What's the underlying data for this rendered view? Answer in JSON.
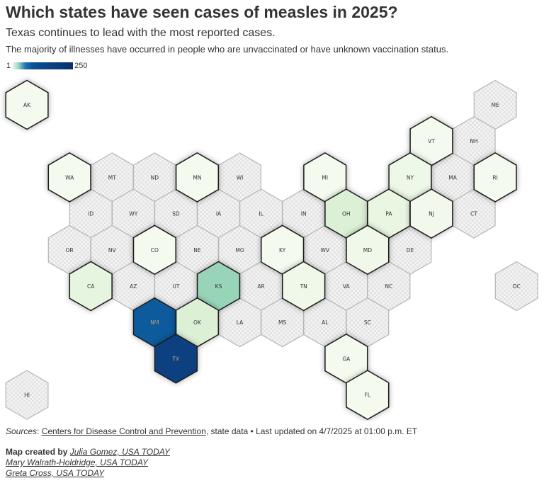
{
  "title": "Which states have seen cases of measles in 2025?",
  "subtitle": "Texas continues to lead with the most reported cases.",
  "description": "The majority of illnesses have occurred in people who are unvaccinated or have unknown vaccination status.",
  "legend": {
    "min": "1",
    "max": "250"
  },
  "colors": {
    "no_data": "#eeeeee",
    "lightest": "#f4faee",
    "light": "#dcf0d6",
    "mid": "#98d5b8",
    "dark": "#0a5a9c",
    "darkest": "#0a3f80"
  },
  "states": [
    {
      "abbr": "AK",
      "fill": "#f4faee"
    },
    {
      "abbr": "ME",
      "fill": null
    },
    {
      "abbr": "VT",
      "fill": "#f4faee"
    },
    {
      "abbr": "NH",
      "fill": null
    },
    {
      "abbr": "WA",
      "fill": "#f4faee"
    },
    {
      "abbr": "MT",
      "fill": null
    },
    {
      "abbr": "ND",
      "fill": null
    },
    {
      "abbr": "MN",
      "fill": "#f4faee"
    },
    {
      "abbr": "WI",
      "fill": null
    },
    {
      "abbr": "MI",
      "fill": "#f4faee"
    },
    {
      "abbr": "NY",
      "fill": "#eef8e8"
    },
    {
      "abbr": "MA",
      "fill": null
    },
    {
      "abbr": "RI",
      "fill": "#f4faee"
    },
    {
      "abbr": "ID",
      "fill": null
    },
    {
      "abbr": "WY",
      "fill": null
    },
    {
      "abbr": "SD",
      "fill": null
    },
    {
      "abbr": "IA",
      "fill": null
    },
    {
      "abbr": "IL",
      "fill": null
    },
    {
      "abbr": "IN",
      "fill": null
    },
    {
      "abbr": "OH",
      "fill": "#dcf0d6"
    },
    {
      "abbr": "PA",
      "fill": "#e8f6e2"
    },
    {
      "abbr": "NJ",
      "fill": "#f2f9ec"
    },
    {
      "abbr": "CT",
      "fill": null
    },
    {
      "abbr": "OR",
      "fill": null
    },
    {
      "abbr": "NV",
      "fill": null
    },
    {
      "abbr": "CO",
      "fill": "#f4faee"
    },
    {
      "abbr": "NE",
      "fill": null
    },
    {
      "abbr": "MO",
      "fill": null
    },
    {
      "abbr": "KY",
      "fill": "#f4faee"
    },
    {
      "abbr": "WV",
      "fill": null
    },
    {
      "abbr": "MD",
      "fill": "#f0f8ea"
    },
    {
      "abbr": "DE",
      "fill": null
    },
    {
      "abbr": "CA",
      "fill": "#e6f5e0"
    },
    {
      "abbr": "AZ",
      "fill": null
    },
    {
      "abbr": "UT",
      "fill": null
    },
    {
      "abbr": "KS",
      "fill": "#98d5b8"
    },
    {
      "abbr": "AR",
      "fill": null
    },
    {
      "abbr": "TN",
      "fill": "#f0f8ea"
    },
    {
      "abbr": "VA",
      "fill": null
    },
    {
      "abbr": "NC",
      "fill": null
    },
    {
      "abbr": "DC",
      "fill": null
    },
    {
      "abbr": "NM",
      "fill": "#0a5a9c"
    },
    {
      "abbr": "OK",
      "fill": "#dcf0d6"
    },
    {
      "abbr": "LA",
      "fill": null
    },
    {
      "abbr": "MS",
      "fill": null
    },
    {
      "abbr": "AL",
      "fill": null
    },
    {
      "abbr": "SC",
      "fill": null
    },
    {
      "abbr": "TX",
      "fill": "#0a3f80"
    },
    {
      "abbr": "GA",
      "fill": "#f4faee"
    },
    {
      "abbr": "HI",
      "fill": null
    },
    {
      "abbr": "FL",
      "fill": "#f4faee"
    }
  ],
  "footer": {
    "sources_label": "Sources",
    "source_link": "Centers for Disease Control and Prevention",
    "source_rest": ", state data • Last updated on 4/7/2025 at 01:00 p.m. ET"
  },
  "credits": {
    "label": "Map created by",
    "authors": [
      "Julia Gomez, USA TODAY",
      "Mary Walrath-Holdridge, USA TODAY",
      "Greta Cross, USA TODAY"
    ]
  }
}
